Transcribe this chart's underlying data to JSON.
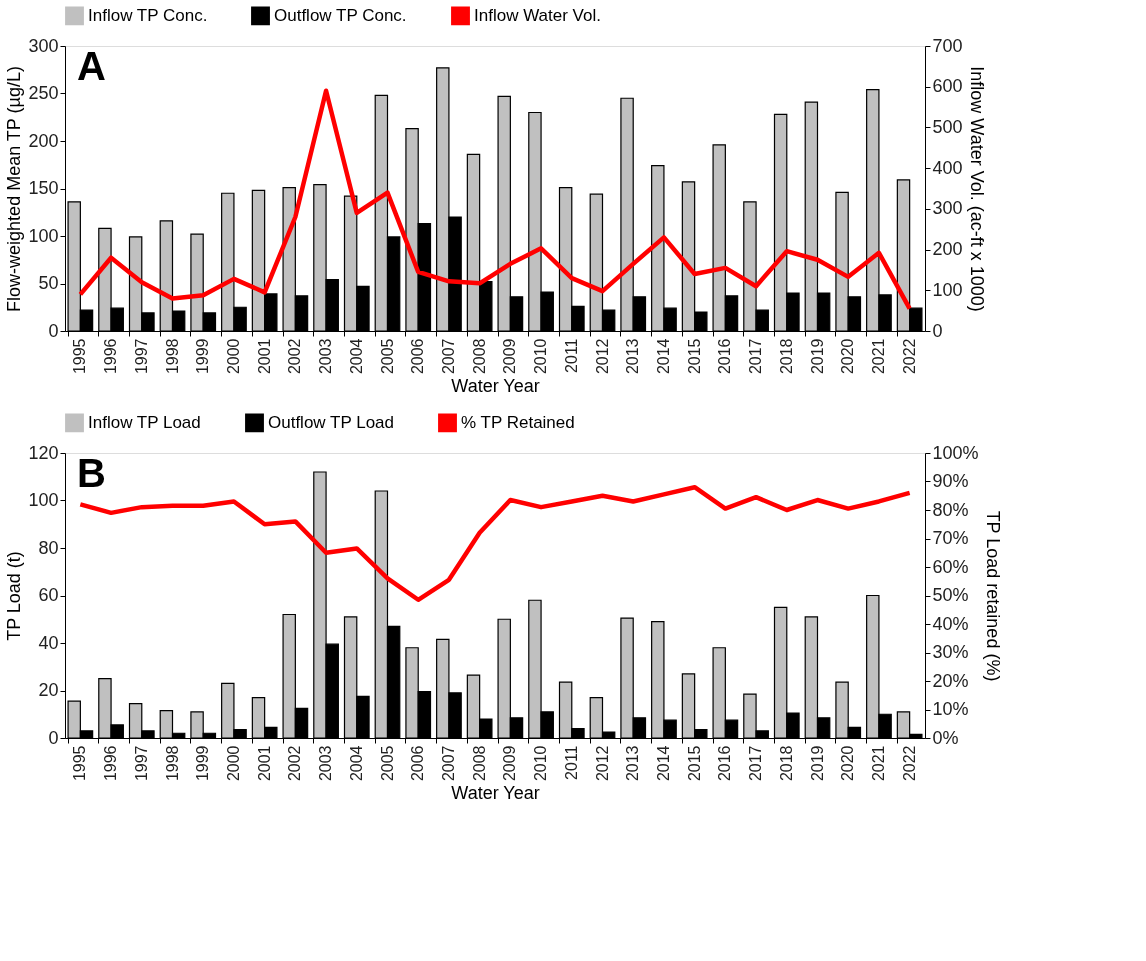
{
  "chart_data": [
    {
      "type": "bar",
      "categories": [
        "1995",
        "1996",
        "1997",
        "1998",
        "1999",
        "2000",
        "2001",
        "2002",
        "2003",
        "2004",
        "2005",
        "2006",
        "2007",
        "2008",
        "2009",
        "2010",
        "2011",
        "2012",
        "2013",
        "2014",
        "2015",
        "2016",
        "2017",
        "2018",
        "2019",
        "2020",
        "2021",
        "2022"
      ],
      "series": [
        {
          "name": "Inflow TP Conc.",
          "color": "#c0c0c0",
          "values": [
            136,
            108,
            99,
            116,
            102,
            145,
            148,
            151,
            154,
            142,
            248,
            213,
            277,
            186,
            247,
            230,
            151,
            144,
            245,
            174,
            157,
            196,
            136,
            228,
            241,
            146,
            254,
            159
          ]
        },
        {
          "name": "Outflow TP Conc.",
          "color": "#000000",
          "values": [
            22,
            24,
            19,
            21,
            19,
            25,
            39,
            37,
            54,
            47,
            99,
            113,
            120,
            52,
            36,
            41,
            26,
            22,
            36,
            24,
            20,
            37,
            22,
            40,
            40,
            36,
            38,
            24
          ]
        },
        {
          "name": "Inflow Water Vol.",
          "type": "line",
          "axis": "y2",
          "color": "#ff0000",
          "values": [
            90,
            180,
            120,
            80,
            88,
            128,
            95,
            280,
            590,
            290,
            340,
            145,
            122,
            117,
            165,
            203,
            130,
            98,
            165,
            230,
            140,
            155,
            110,
            196,
            175,
            133,
            192,
            55
          ]
        }
      ],
      "ylim": [
        0,
        300
      ],
      "yticks": [
        0,
        50,
        100,
        150,
        200,
        250,
        300
      ],
      "y2lim": [
        0,
        700
      ],
      "y2ticks": [
        0,
        100,
        200,
        300,
        400,
        500,
        600,
        700
      ],
      "xlabel": "Water Year",
      "ylabel": "Flow-weighted Mean TP (µg/L)",
      "y2label": "Inflow Water Vol. (ac-ft x 1000)",
      "legend": "top",
      "grid": false,
      "annotations": [
        "A"
      ]
    },
    {
      "type": "bar",
      "categories": [
        "1995",
        "1996",
        "1997",
        "1998",
        "1999",
        "2000",
        "2001",
        "2002",
        "2003",
        "2004",
        "2005",
        "2006",
        "2007",
        "2008",
        "2009",
        "2010",
        "2011",
        "2012",
        "2013",
        "2014",
        "2015",
        "2016",
        "2017",
        "2018",
        "2019",
        "2020",
        "2021",
        "2022"
      ],
      "series": [
        {
          "name": "Inflow TP Load",
          "color": "#c0c0c0",
          "values": [
            15.5,
            25,
            14.5,
            11.5,
            11,
            23,
            17,
            52,
            112,
            51,
            104,
            38,
            41.5,
            26.5,
            50,
            58,
            23.5,
            17,
            50.5,
            49,
            27,
            38,
            18.5,
            55,
            51,
            23.5,
            60,
            11
          ]
        },
        {
          "name": "Outflow TP Load",
          "color": "#000000",
          "values": [
            3,
            5.5,
            3,
            2,
            2,
            3.5,
            4.5,
            12.5,
            39.5,
            17.5,
            47,
            19.5,
            19,
            8,
            8.5,
            11,
            4,
            2.5,
            8.5,
            7.5,
            3.5,
            7.5,
            3,
            10.5,
            8.5,
            4.5,
            10,
            1.5
          ]
        },
        {
          "name": "% TP Retained",
          "type": "line",
          "axis": "y2",
          "color": "#ff0000",
          "values": [
            82,
            79,
            81,
            81.5,
            81.5,
            83,
            75,
            76,
            65,
            66.5,
            56,
            48.5,
            55.5,
            72,
            83.5,
            81,
            83,
            85,
            83,
            85.5,
            88,
            80.5,
            84.5,
            80,
            83.5,
            80.5,
            83,
            86
          ]
        }
      ],
      "ylim": [
        0,
        120
      ],
      "yticks": [
        0,
        20,
        40,
        60,
        80,
        100,
        120
      ],
      "y2lim": [
        0,
        100
      ],
      "y2ticks": [
        {
          "value": 0,
          "label": "0%"
        },
        {
          "value": 10,
          "label": "10%"
        },
        {
          "value": 20,
          "label": "20%"
        },
        {
          "value": 30,
          "label": "30%"
        },
        {
          "value": 40,
          "label": "40%"
        },
        {
          "value": 50,
          "label": "50%"
        },
        {
          "value": 60,
          "label": "60%"
        },
        {
          "value": 70,
          "label": "70%"
        },
        {
          "value": 80,
          "label": "80%"
        },
        {
          "value": 90,
          "label": "90%"
        },
        {
          "value": 100,
          "label": "100%"
        }
      ],
      "xlabel": "Water Year",
      "ylabel": "TP Load (t)",
      "y2label": "TP Load retained (%)",
      "legend": "top",
      "grid": false,
      "annotations": [
        "B"
      ]
    }
  ]
}
